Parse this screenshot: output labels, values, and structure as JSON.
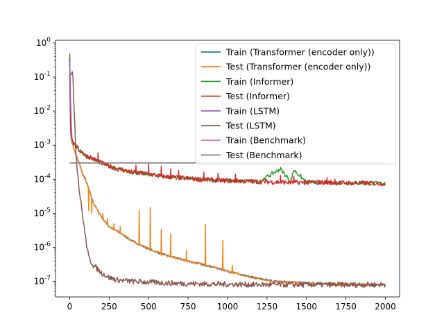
{
  "chart_data": {
    "type": "line",
    "title": "",
    "xlabel": "",
    "ylabel": "",
    "xlim": [
      -90,
      2090
    ],
    "ylim": [
      3.5e-08,
      1.2
    ],
    "yscale": "log",
    "grid": false,
    "legend_position": "top-right",
    "x_ticks": [
      0,
      250,
      500,
      750,
      1000,
      1250,
      1500,
      1750,
      2000
    ],
    "x_tick_labels": [
      "0",
      "250",
      "500",
      "750",
      "1000",
      "1250",
      "1500",
      "1750",
      "2000"
    ],
    "y_ticks": [
      1e-07,
      1e-06,
      1e-05,
      0.0001,
      0.001,
      0.01,
      0.1,
      1
    ],
    "y_tick_labels": [
      "10^-7",
      "10^-6",
      "10^-5",
      "10^-4",
      "10^-3",
      "10^-2",
      "10^-1",
      "10^0"
    ],
    "series": [
      {
        "name": "Train (Transformer (encoder only))",
        "color": "#1f77b4",
        "x": [
          0,
          5,
          10,
          20,
          40,
          60,
          80,
          100,
          150,
          200,
          250,
          300,
          400,
          500,
          600,
          700,
          800,
          900,
          1000,
          1100,
          1200,
          1300,
          1400,
          1500,
          1600,
          1700,
          1800,
          1900,
          2000
        ],
        "y": [
          0.4,
          0.002,
          0.0015,
          0.001,
          0.0005,
          0.0003,
          0.00015,
          0.0001,
          2e-05,
          8e-06,
          4e-06,
          3e-06,
          1.5e-06,
          9e-07,
          6e-07,
          4.5e-07,
          3.5e-07,
          2.7e-07,
          2e-07,
          1.5e-07,
          1.2e-07,
          1e-07,
          9.5e-08,
          9e-08,
          8.5e-08,
          8e-08,
          8e-08,
          8e-08,
          8e-08
        ]
      },
      {
        "name": "Test (Transformer (encoder only))",
        "color": "#ff7f0e",
        "x": [
          0,
          5,
          10,
          20,
          40,
          60,
          80,
          100,
          150,
          200,
          250,
          300,
          400,
          500,
          600,
          700,
          800,
          900,
          1000,
          1100,
          1200,
          1300,
          1400,
          1500,
          1600,
          1700,
          1800,
          1900,
          2000
        ],
        "y": [
          0.45,
          0.002,
          0.0015,
          0.001,
          0.0005,
          0.0003,
          0.00015,
          0.0001,
          2e-05,
          8e-06,
          4e-06,
          3e-06,
          1.5e-06,
          9e-07,
          6e-07,
          4.5e-07,
          3.5e-07,
          2.7e-07,
          2e-07,
          1.5e-07,
          1.2e-07,
          1e-07,
          9.5e-08,
          9e-08,
          8.5e-08,
          8e-08,
          8e-08,
          8e-08,
          8e-08
        ]
      },
      {
        "name": "Train (Informer)",
        "color": "#2ca02c",
        "x": [
          0,
          5,
          10,
          20,
          50,
          100,
          150,
          200,
          300,
          400,
          500,
          600,
          700,
          800,
          900,
          1000,
          1200,
          1335,
          1400,
          1420,
          1500,
          1600,
          1700,
          1800,
          1900,
          2000
        ],
        "y": [
          0.5,
          0.003,
          0.0018,
          0.0012,
          0.0008,
          0.0005,
          0.0004,
          0.0003,
          0.0002,
          0.00016,
          0.00014,
          0.00012,
          0.00011,
          0.0001,
          9.5e-05,
          9e-05,
          8.5e-05,
          0.0002,
          8.5e-05,
          0.00019,
          8e-05,
          8e-05,
          7.8e-05,
          7.7e-05,
          7.6e-05,
          7.5e-05
        ]
      },
      {
        "name": "Test (Informer)",
        "color": "#d62728",
        "x": [
          0,
          5,
          10,
          20,
          50,
          100,
          150,
          200,
          300,
          400,
          500,
          600,
          700,
          800,
          900,
          1000,
          1200,
          1400,
          1600,
          1800,
          2000
        ],
        "y": [
          0.35,
          0.003,
          0.0018,
          0.0012,
          0.0008,
          0.0005,
          0.0004,
          0.0003,
          0.0002,
          0.00016,
          0.00014,
          0.00012,
          0.00011,
          0.0001,
          9.5e-05,
          9e-05,
          8.5e-05,
          8e-05,
          8e-05,
          7.7e-05,
          7.5e-05
        ]
      },
      {
        "name": "Train (LSTM)",
        "color": "#9467bd",
        "x": [
          0,
          3,
          6,
          10,
          15
        ],
        "y": [
          0.3,
          0.1,
          0.02,
          0.004,
          0.0015
        ]
      },
      {
        "name": "Test (LSTM)",
        "color": "#8c564b",
        "x": [
          0,
          5,
          10,
          20,
          40,
          60,
          80,
          100,
          120,
          150,
          200,
          250,
          300,
          400,
          500,
          600,
          800,
          1000,
          1200,
          1500,
          1750,
          2000
        ],
        "y": [
          0.12,
          0.12,
          0.12,
          0.12,
          0.0005,
          5e-05,
          1e-05,
          2e-06,
          5e-07,
          3e-07,
          1.8e-07,
          1.3e-07,
          1.1e-07,
          1e-07,
          9.5e-08,
          9e-08,
          8.5e-08,
          8.2e-08,
          8e-08,
          8e-08,
          8e-08,
          8e-08
        ]
      },
      {
        "name": "Train (Benchmark)",
        "color": "#e377c2",
        "x": [
          0,
          2000
        ],
        "y": [
          0.0003,
          0.0003
        ]
      },
      {
        "name": "Test (Benchmark)",
        "color": "#7f7f7f",
        "x": [
          0,
          2000
        ],
        "y": [
          0.0003,
          0.0003
        ]
      }
    ],
    "spikes": [
      {
        "series": "Test (Informer)",
        "x": [
          180,
          250,
          330,
          420,
          500,
          580,
          640,
          690,
          850,
          940,
          1050,
          1335,
          1420,
          1630,
          1680
        ],
        "y": [
          0.0006,
          0.00025,
          0.00022,
          0.00026,
          0.00028,
          0.00024,
          0.0002,
          0.00018,
          0.00016,
          0.00015,
          0.00014,
          0.00013,
          0.00012,
          0.00011,
          0.0001
        ]
      },
      {
        "series": "Test (Transformer (encoder only))",
        "x": [
          120,
          140,
          180,
          210,
          240,
          280,
          320,
          440,
          510,
          580,
          640,
          740,
          860,
          970,
          1030
        ],
        "y": [
          1.2e-05,
          1e-05,
          1.2e-05,
          1e-05,
          7e-06,
          5e-06,
          4e-06,
          1.2e-05,
          1.5e-05,
          3.4e-06,
          2.5e-06,
          8e-07,
          4.7e-06,
          1.6e-06,
          3e-07
        ]
      }
    ]
  }
}
